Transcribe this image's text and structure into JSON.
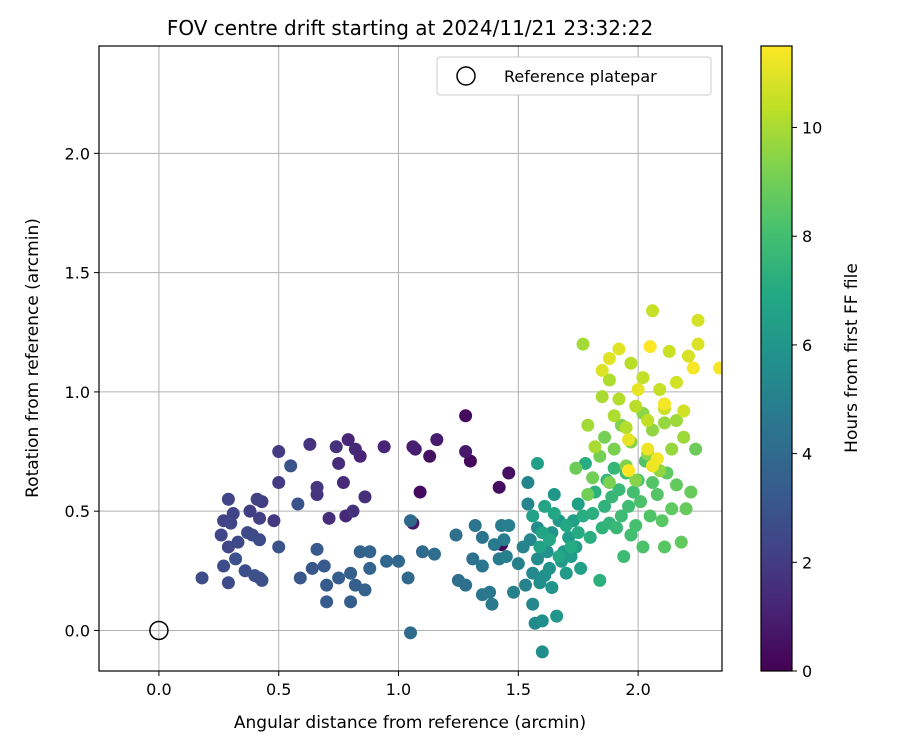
{
  "chart_data": {
    "type": "scatter",
    "title": "FOV centre drift starting at 2024/11/21 23:32:22",
    "xlabel": "Angular distance from reference (arcmin)",
    "ylabel": "Rotation from reference (arcmin)",
    "xlim": [
      -0.25,
      2.35
    ],
    "ylim": [
      -0.17,
      2.45
    ],
    "xticks": [
      "0.0",
      "0.5",
      "1.0",
      "1.5",
      "2.0"
    ],
    "yticks": [
      "0.0",
      "0.5",
      "1.0",
      "1.5",
      "2.0"
    ],
    "grid": true,
    "legend": {
      "placement": "top-right",
      "entries": [
        "Reference platepar"
      ]
    },
    "colorbar": {
      "label": "Hours from first FF file",
      "range": [
        0,
        11.5
      ],
      "ticks": [
        "0",
        "2",
        "4",
        "6",
        "8",
        "10"
      ],
      "colormap": "viridis"
    },
    "reference_point": {
      "x": 0.0,
      "y": 0.0
    },
    "series": [
      {
        "points": [
          [
            1.43,
            0.36,
            0.1
          ],
          [
            1.3,
            0.71,
            0.2
          ],
          [
            1.28,
            0.9,
            0.3
          ],
          [
            1.09,
            0.58,
            0.3
          ],
          [
            1.42,
            0.6,
            0.4
          ],
          [
            1.46,
            0.66,
            0.5
          ],
          [
            1.13,
            0.73,
            0.5
          ],
          [
            1.06,
            0.45,
            0.7
          ],
          [
            1.28,
            0.75,
            0.8
          ],
          [
            1.16,
            0.8,
            0.9
          ],
          [
            1.07,
            0.76,
            1.0
          ],
          [
            1.06,
            0.77,
            1.0
          ],
          [
            0.84,
            0.73,
            1.1
          ],
          [
            0.94,
            0.77,
            1.2
          ],
          [
            0.79,
            0.8,
            1.2
          ],
          [
            0.82,
            0.76,
            1.3
          ],
          [
            0.78,
            0.48,
            1.3
          ],
          [
            0.75,
            0.7,
            1.4
          ],
          [
            0.77,
            0.62,
            1.4
          ],
          [
            0.71,
            0.47,
            1.5
          ],
          [
            0.86,
            0.56,
            1.5
          ],
          [
            0.81,
            0.5,
            1.6
          ],
          [
            0.74,
            0.77,
            1.6
          ],
          [
            0.63,
            0.78,
            1.7
          ],
          [
            0.66,
            0.57,
            1.7
          ],
          [
            0.66,
            0.6,
            1.8
          ],
          [
            0.48,
            0.46,
            1.9
          ],
          [
            0.5,
            0.62,
            2.0
          ],
          [
            0.5,
            0.75,
            2.0
          ],
          [
            0.43,
            0.54,
            2.1
          ],
          [
            0.38,
            0.5,
            2.1
          ],
          [
            0.41,
            0.55,
            2.2
          ],
          [
            0.42,
            0.47,
            2.2
          ],
          [
            0.29,
            0.55,
            2.3
          ],
          [
            0.27,
            0.46,
            2.3
          ],
          [
            0.31,
            0.49,
            2.3
          ],
          [
            0.3,
            0.45,
            2.4
          ],
          [
            0.26,
            0.4,
            2.4
          ],
          [
            0.29,
            0.35,
            2.4
          ],
          [
            0.33,
            0.37,
            2.5
          ],
          [
            0.37,
            0.41,
            2.5
          ],
          [
            0.42,
            0.38,
            2.6
          ],
          [
            0.39,
            0.4,
            2.6
          ],
          [
            0.29,
            0.2,
            2.6
          ],
          [
            0.27,
            0.27,
            2.7
          ],
          [
            0.18,
            0.22,
            2.7
          ],
          [
            0.36,
            0.25,
            2.7
          ],
          [
            0.4,
            0.23,
            2.8
          ],
          [
            0.42,
            0.22,
            2.8
          ],
          [
            0.43,
            0.21,
            2.8
          ],
          [
            0.32,
            0.3,
            2.9
          ],
          [
            0.5,
            0.35,
            2.9
          ],
          [
            0.55,
            0.69,
            3.0
          ],
          [
            0.58,
            0.53,
            3.0
          ],
          [
            0.59,
            0.22,
            3.1
          ],
          [
            0.64,
            0.26,
            3.1
          ],
          [
            0.66,
            0.34,
            3.2
          ],
          [
            0.69,
            0.27,
            3.2
          ],
          [
            0.7,
            0.19,
            3.3
          ],
          [
            0.7,
            0.12,
            3.3
          ],
          [
            0.75,
            0.22,
            3.4
          ],
          [
            0.8,
            0.12,
            3.4
          ],
          [
            0.8,
            0.24,
            3.5
          ],
          [
            0.82,
            0.19,
            3.5
          ],
          [
            0.84,
            0.33,
            3.6
          ],
          [
            0.86,
            0.17,
            3.6
          ],
          [
            0.88,
            0.33,
            3.7
          ],
          [
            0.88,
            0.26,
            3.7
          ],
          [
            0.95,
            0.29,
            3.8
          ],
          [
            1.0,
            0.29,
            3.8
          ],
          [
            1.05,
            0.46,
            3.9
          ],
          [
            1.04,
            0.22,
            3.9
          ],
          [
            1.05,
            -0.01,
            4.0
          ],
          [
            1.1,
            0.33,
            4.0
          ],
          [
            1.15,
            0.32,
            4.1
          ],
          [
            1.24,
            0.4,
            4.2
          ],
          [
            1.25,
            0.21,
            4.2
          ],
          [
            1.28,
            0.19,
            4.3
          ],
          [
            1.31,
            0.3,
            4.3
          ],
          [
            1.32,
            0.44,
            4.4
          ],
          [
            1.35,
            0.39,
            4.4
          ],
          [
            1.35,
            0.15,
            4.5
          ],
          [
            1.35,
            0.27,
            4.5
          ],
          [
            1.38,
            0.16,
            4.6
          ],
          [
            1.39,
            0.11,
            4.6
          ],
          [
            1.4,
            0.36,
            4.7
          ],
          [
            1.42,
            0.3,
            4.7
          ],
          [
            1.43,
            0.44,
            4.8
          ],
          [
            1.44,
            0.38,
            4.8
          ],
          [
            1.46,
            0.44,
            4.9
          ],
          [
            1.45,
            0.31,
            4.9
          ],
          [
            1.48,
            0.16,
            5.0
          ],
          [
            1.5,
            0.28,
            5.0
          ],
          [
            1.52,
            0.35,
            5.1
          ],
          [
            1.53,
            0.19,
            5.1
          ],
          [
            1.54,
            0.62,
            5.2
          ],
          [
            1.54,
            0.53,
            5.2
          ],
          [
            1.55,
            0.38,
            5.3
          ],
          [
            1.56,
            0.11,
            5.3
          ],
          [
            1.56,
            0.24,
            5.4
          ],
          [
            1.57,
            0.03,
            5.4
          ],
          [
            1.58,
            0.43,
            5.5
          ],
          [
            1.58,
            0.3,
            5.5
          ],
          [
            1.59,
            0.2,
            5.6
          ],
          [
            1.6,
            -0.09,
            5.6
          ],
          [
            1.6,
            0.04,
            5.7
          ],
          [
            1.61,
            0.23,
            5.7
          ],
          [
            1.62,
            0.33,
            5.8
          ],
          [
            1.63,
            0.26,
            5.8
          ],
          [
            1.64,
            0.41,
            5.9
          ],
          [
            1.64,
            0.18,
            5.9
          ],
          [
            1.65,
            0.57,
            6.0
          ],
          [
            1.66,
            0.06,
            6.0
          ],
          [
            1.67,
            0.46,
            6.1
          ],
          [
            1.68,
            0.29,
            6.1
          ],
          [
            1.69,
            0.33,
            6.2
          ],
          [
            1.7,
            0.24,
            6.2
          ],
          [
            1.71,
            0.39,
            6.3
          ],
          [
            1.72,
            0.31,
            6.3
          ],
          [
            1.73,
            0.46,
            6.4
          ],
          [
            1.74,
            0.35,
            6.4
          ],
          [
            1.75,
            0.53,
            6.5
          ],
          [
            1.76,
            0.26,
            6.5
          ],
          [
            1.58,
            0.7,
            6.5
          ],
          [
            1.56,
            0.48,
            6.6
          ],
          [
            1.59,
            0.35,
            6.6
          ],
          [
            1.6,
            0.41,
            6.7
          ],
          [
            1.61,
            0.52,
            6.7
          ],
          [
            1.63,
            0.38,
            6.8
          ],
          [
            1.65,
            0.49,
            6.8
          ],
          [
            1.67,
            0.31,
            6.9
          ],
          [
            1.7,
            0.44,
            6.9
          ],
          [
            1.72,
            0.35,
            7.0
          ],
          [
            1.75,
            0.41,
            7.0
          ],
          [
            1.77,
            0.48,
            7.1
          ],
          [
            1.78,
            0.7,
            7.1
          ],
          [
            1.8,
            0.39,
            7.2
          ],
          [
            1.81,
            0.49,
            7.2
          ],
          [
            1.82,
            0.58,
            7.3
          ],
          [
            1.84,
            0.21,
            7.3
          ],
          [
            1.85,
            0.43,
            7.4
          ],
          [
            1.86,
            0.52,
            7.4
          ],
          [
            1.87,
            0.63,
            7.5
          ],
          [
            1.88,
            0.45,
            7.5
          ],
          [
            1.89,
            0.56,
            7.6
          ],
          [
            1.9,
            0.68,
            7.6
          ],
          [
            1.91,
            0.43,
            7.7
          ],
          [
            1.92,
            0.59,
            7.7
          ],
          [
            1.93,
            0.48,
            7.8
          ],
          [
            1.94,
            0.31,
            7.8
          ],
          [
            1.95,
            0.66,
            7.9
          ],
          [
            1.96,
            0.52,
            7.9
          ],
          [
            1.97,
            0.4,
            8.0
          ],
          [
            1.98,
            0.58,
            8.0
          ],
          [
            1.99,
            0.44,
            8.1
          ],
          [
            2.0,
            0.63,
            8.1
          ],
          [
            2.01,
            0.54,
            8.2
          ],
          [
            2.02,
            0.35,
            8.2
          ],
          [
            2.03,
            0.71,
            8.3
          ],
          [
            2.05,
            0.48,
            8.3
          ],
          [
            2.06,
            0.62,
            8.4
          ],
          [
            2.08,
            0.57,
            8.4
          ],
          [
            2.1,
            0.46,
            8.5
          ],
          [
            2.11,
            0.35,
            8.5
          ],
          [
            2.12,
            0.66,
            8.6
          ],
          [
            2.14,
            0.51,
            8.6
          ],
          [
            2.16,
            0.61,
            8.7
          ],
          [
            2.18,
            0.37,
            8.7
          ],
          [
            2.2,
            0.51,
            8.8
          ],
          [
            2.22,
            0.58,
            8.8
          ],
          [
            2.24,
            0.76,
            8.9
          ],
          [
            1.74,
            0.68,
            8.9
          ],
          [
            1.79,
            0.57,
            9.0
          ],
          [
            1.81,
            0.64,
            9.0
          ],
          [
            1.84,
            0.73,
            9.1
          ],
          [
            1.86,
            0.81,
            9.1
          ],
          [
            1.88,
            0.62,
            9.2
          ],
          [
            1.9,
            0.76,
            9.2
          ],
          [
            1.93,
            0.86,
            9.3
          ],
          [
            1.95,
            0.69,
            9.3
          ],
          [
            1.97,
            0.79,
            9.4
          ],
          [
            1.99,
            0.63,
            9.4
          ],
          [
            2.02,
            0.91,
            9.5
          ],
          [
            2.04,
            0.74,
            9.5
          ],
          [
            2.06,
            0.84,
            9.6
          ],
          [
            2.09,
            0.67,
            9.6
          ],
          [
            2.11,
            0.87,
            9.7
          ],
          [
            2.14,
            0.76,
            9.7
          ],
          [
            2.16,
            0.88,
            9.8
          ],
          [
            2.19,
            0.81,
            9.8
          ],
          [
            1.77,
            1.2,
            9.9
          ],
          [
            1.79,
            0.86,
            9.9
          ],
          [
            1.82,
            0.77,
            10.0
          ],
          [
            1.85,
            0.98,
            10.0
          ],
          [
            1.88,
            1.05,
            10.1
          ],
          [
            1.9,
            0.9,
            10.1
          ],
          [
            1.92,
            0.97,
            10.2
          ],
          [
            1.95,
            0.85,
            10.2
          ],
          [
            1.97,
            1.12,
            10.3
          ],
          [
            1.99,
            0.94,
            10.3
          ],
          [
            2.02,
            1.06,
            10.4
          ],
          [
            2.04,
            0.88,
            10.4
          ],
          [
            2.06,
            1.34,
            10.5
          ],
          [
            2.09,
            1.01,
            10.5
          ],
          [
            2.11,
            0.93,
            10.6
          ],
          [
            2.13,
            1.17,
            10.6
          ],
          [
            2.16,
            1.04,
            10.7
          ],
          [
            2.19,
            0.92,
            10.7
          ],
          [
            2.21,
            1.15,
            10.8
          ],
          [
            2.25,
            1.3,
            10.8
          ],
          [
            2.25,
            1.2,
            10.9
          ],
          [
            1.85,
            1.09,
            10.9
          ],
          [
            1.88,
            1.14,
            11.0
          ],
          [
            1.92,
            1.18,
            11.0
          ],
          [
            1.96,
            0.8,
            11.1
          ],
          [
            2.0,
            1.01,
            11.1
          ],
          [
            2.04,
            0.76,
            11.2
          ],
          [
            2.06,
            0.69,
            11.2
          ],
          [
            2.08,
            0.72,
            11.3
          ],
          [
            2.11,
            0.95,
            11.3
          ],
          [
            2.23,
            1.1,
            11.4
          ],
          [
            2.34,
            1.1,
            11.4
          ],
          [
            1.96,
            0.67,
            11.5
          ],
          [
            2.05,
            1.19,
            11.5
          ]
        ]
      }
    ]
  },
  "colors": {
    "grid": "#b0b0b0",
    "axes": "#000000",
    "background": "#ffffff",
    "legend_border": "#cccccc"
  }
}
